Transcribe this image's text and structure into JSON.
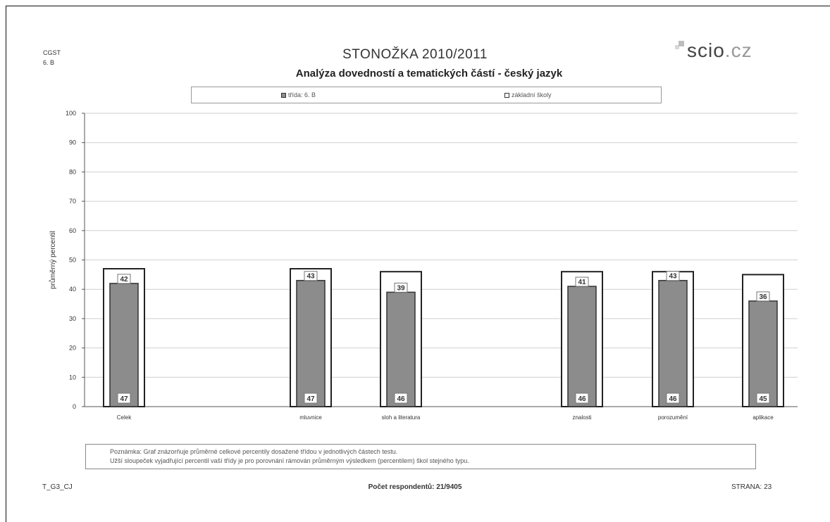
{
  "header": {
    "code_line1": "CGST",
    "code_line2": "6. B",
    "title": "STONOŽKA 2010/2011",
    "subtitle": "Analýza dovedností a tematických částí - český jazyk",
    "logo_text": "scio",
    "logo_suffix": ".cz"
  },
  "legend": {
    "class_label": "třída: 6. B",
    "schools_label": "základní školy"
  },
  "chart_data": {
    "type": "bar",
    "ylabel": "průměrný percentil",
    "ylim": [
      0,
      100
    ],
    "yticks": [
      0,
      10,
      20,
      30,
      40,
      50,
      60,
      70,
      80,
      90,
      100
    ],
    "grid": true,
    "legend_position": "top",
    "categories": [
      "Celek",
      "mluvnice",
      "sloh a literatura",
      "znalosti",
      "porozumění",
      "aplikace"
    ],
    "series": [
      {
        "name": "třída: 6. B",
        "values": [
          42,
          43,
          39,
          41,
          43,
          36
        ],
        "color": "#8c8c8c"
      },
      {
        "name": "základní školy",
        "values": [
          47,
          47,
          46,
          46,
          46,
          45
        ],
        "color": "#ffffff"
      }
    ]
  },
  "note": {
    "line1": "Poznámka: Graf znázorňuje průměrné celkové percentily dosažené třídou v jednotlivých částech testu.",
    "line2": "Užší sloupeček vyjadřující percentil vaší třídy je pro porovnání rámován průměrným výsledkem (percentilem) škol stejného typu."
  },
  "footer": {
    "left": "T_G3_CJ",
    "center": "Počet respondentů: 21/9405",
    "right": "STRANA: 23"
  }
}
